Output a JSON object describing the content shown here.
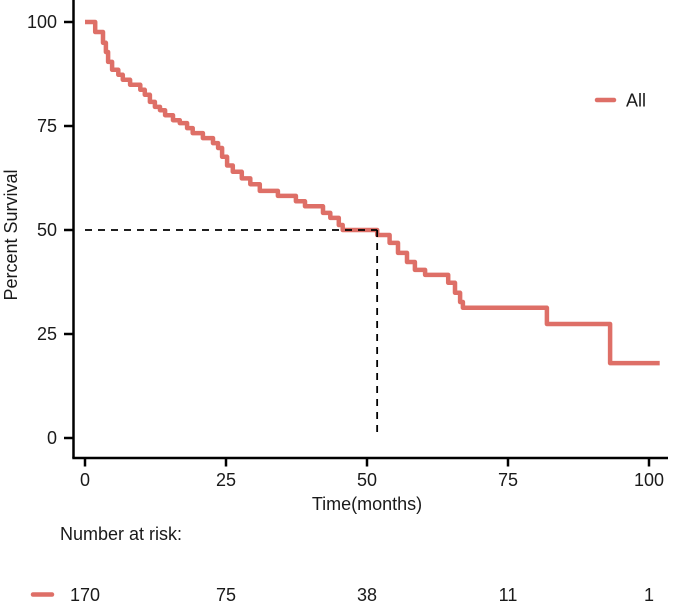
{
  "figure": {
    "kind": "kaplan-meier-survival-plot",
    "background": "#ffffff"
  },
  "chart_data": {
    "type": "line",
    "subtype": "kaplan-meier-step",
    "title": "",
    "xlabel": "Time(months)",
    "ylabel": "Percent Survival",
    "xlim": [
      0,
      100
    ],
    "ylim": [
      0,
      100
    ],
    "x_ticks": [
      "0",
      "25",
      "50",
      "75",
      "100"
    ],
    "x_tick_values": [
      0,
      25,
      50,
      75,
      100
    ],
    "y_ticks": [
      "0",
      "25",
      "50",
      "75",
      "100"
    ],
    "y_tick_values": [
      0,
      25,
      50,
      75,
      100
    ],
    "grid": "off",
    "legend": {
      "position": "right-top",
      "entries": [
        {
          "label": "All",
          "color": "#DE6F67"
        }
      ]
    },
    "series": [
      {
        "name": "All",
        "color": "#DE6F67",
        "step": "hv",
        "points": [
          [
            0,
            100
          ],
          [
            1.8,
            97.6
          ],
          [
            3.2,
            95.0
          ],
          [
            3.7,
            92.8
          ],
          [
            4.1,
            90.4
          ],
          [
            4.8,
            88.5
          ],
          [
            5.9,
            87.3
          ],
          [
            6.7,
            86.1
          ],
          [
            8.0,
            84.9
          ],
          [
            9.8,
            83.7
          ],
          [
            10.6,
            82.5
          ],
          [
            11.5,
            80.8
          ],
          [
            12.4,
            79.6
          ],
          [
            13.3,
            78.8
          ],
          [
            14.2,
            77.6
          ],
          [
            15.6,
            76.4
          ],
          [
            16.8,
            75.7
          ],
          [
            18.1,
            74.5
          ],
          [
            19.1,
            73.3
          ],
          [
            20.9,
            72.1
          ],
          [
            22.7,
            70.9
          ],
          [
            23.6,
            69.7
          ],
          [
            24.3,
            67.6
          ],
          [
            25.2,
            65.5
          ],
          [
            26.2,
            64.0
          ],
          [
            27.8,
            62.4
          ],
          [
            29.3,
            61.0
          ],
          [
            31.0,
            59.4
          ],
          [
            34.2,
            58.2
          ],
          [
            37.4,
            56.9
          ],
          [
            39.0,
            55.7
          ],
          [
            42.2,
            54.1
          ],
          [
            43.5,
            52.9
          ],
          [
            45.0,
            51.2
          ],
          [
            45.7,
            50.0
          ],
          [
            51.8,
            48.8
          ],
          [
            54.0,
            46.9
          ],
          [
            55.5,
            44.5
          ],
          [
            57.1,
            42.3
          ],
          [
            58.5,
            40.4
          ],
          [
            60.3,
            39.2
          ],
          [
            64.4,
            37.3
          ],
          [
            65.6,
            34.9
          ],
          [
            66.5,
            32.7
          ],
          [
            67.0,
            31.3
          ],
          [
            81.9,
            27.4
          ],
          [
            93.1,
            18.0
          ],
          [
            101.9,
            18.0
          ]
        ]
      }
    ],
    "median_annotation": {
      "time": 51.8,
      "survival": 50,
      "line_style": "dashed",
      "line_color": "#000000"
    },
    "risk_table": {
      "label": "Number at risk:",
      "times": [
        0,
        25,
        50,
        75,
        100
      ],
      "rows": [
        {
          "name": "All",
          "color": "#DE6F67",
          "counts": [
            "170",
            "75",
            "38",
            "11",
            "1"
          ]
        }
      ]
    },
    "colors": {
      "curve": "#DE6F67",
      "axis": "#000000",
      "text": "#1a1a1a",
      "dashed": "#000000"
    }
  }
}
